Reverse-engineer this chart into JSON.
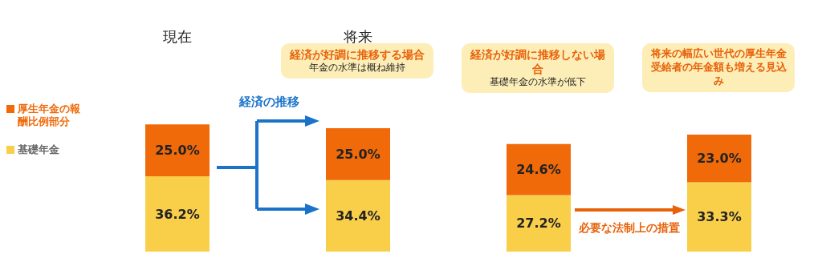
{
  "chart_data": {
    "type": "bar",
    "stacked": true,
    "categories": [
      "現在",
      "将来",
      null,
      null
    ],
    "series": [
      {
        "name": "基礎年金",
        "color": "#f9cf4a",
        "values": [
          36.2,
          34.4,
          27.2,
          33.3
        ],
        "value_labels": [
          "36.2%",
          "34.4%",
          "27.2%",
          "33.3%"
        ]
      },
      {
        "name": "厚生年金の報酬比例部分",
        "color": "#f06a0a",
        "values": [
          25.0,
          25.0,
          24.6,
          23.0
        ],
        "value_labels": [
          "25.0%",
          "25.0%",
          "24.6%",
          "23.0%"
        ]
      }
    ],
    "legend": "left",
    "annotations": [
      "経済の推移",
      "経済が好調に推移する場合",
      "年金の水準は概ね維持",
      "経済が好調に推移しない場合",
      "基礎年金の水準が低下",
      "将来の幅広い世代の厚生年金受給者の年金額も増える見込み",
      "必要な法制上の措置"
    ]
  }
}
